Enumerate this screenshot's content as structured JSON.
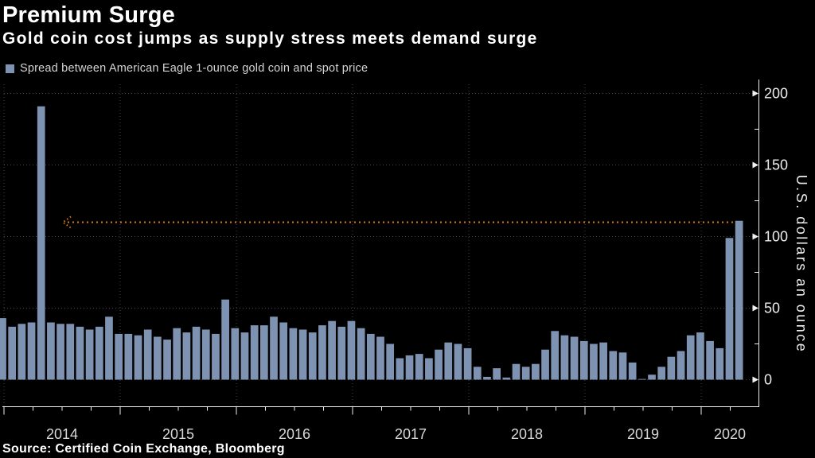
{
  "header": {
    "title": "Premium Surge",
    "subtitle": "Gold coin cost jumps as supply stress meets demand surge"
  },
  "legend": {
    "label": "Spread between American Eagle 1-ounce gold coin and spot price",
    "swatch_color": "#7e92b1"
  },
  "source": "Source: Certified Coin Exchange, Bloomberg",
  "chart_data": {
    "type": "bar",
    "title": "Premium Surge",
    "subtitle": "Gold coin cost jumps as supply stress meets demand surge",
    "series_name": "Spread between American Eagle 1-ounce gold coin and spot price",
    "xlabel": "",
    "ylabel": "U.S. dollars an ounce",
    "ylim": [
      0,
      210
    ],
    "y_ticks": [
      0,
      50,
      100,
      150,
      200
    ],
    "y_minor_ticks": [
      25,
      75,
      125,
      175
    ],
    "grid": "dotted",
    "legend_position": "top-left",
    "x_year_labels": [
      "2014",
      "2015",
      "2016",
      "2017",
      "2018",
      "2019",
      "2020"
    ],
    "months": [
      "2013-12",
      "2014-01",
      "2014-02",
      "2014-03",
      "2014-04",
      "2014-05",
      "2014-06",
      "2014-07",
      "2014-08",
      "2014-09",
      "2014-10",
      "2014-11",
      "2014-12",
      "2015-01",
      "2015-02",
      "2015-03",
      "2015-04",
      "2015-05",
      "2015-06",
      "2015-07",
      "2015-08",
      "2015-09",
      "2015-10",
      "2015-11",
      "2015-12",
      "2016-01",
      "2016-02",
      "2016-03",
      "2016-04",
      "2016-05",
      "2016-06",
      "2016-07",
      "2016-08",
      "2016-09",
      "2016-10",
      "2016-11",
      "2016-12",
      "2017-01",
      "2017-02",
      "2017-03",
      "2017-04",
      "2017-05",
      "2017-06",
      "2017-07",
      "2017-08",
      "2017-09",
      "2017-10",
      "2017-11",
      "2017-12",
      "2018-01",
      "2018-02",
      "2018-03",
      "2018-04",
      "2018-05",
      "2018-06",
      "2018-07",
      "2018-08",
      "2018-09",
      "2018-10",
      "2018-11",
      "2018-12",
      "2019-01",
      "2019-02",
      "2019-03",
      "2019-04",
      "2019-05",
      "2019-06",
      "2019-07",
      "2019-08",
      "2019-09",
      "2019-10",
      "2019-11",
      "2019-12",
      "2020-01",
      "2020-02",
      "2020-03",
      "2020-04"
    ],
    "values": [
      43,
      37,
      39,
      40,
      191,
      40,
      39,
      39,
      37,
      35,
      37,
      44,
      32,
      32,
      31,
      35,
      30,
      28,
      36,
      33,
      37,
      35,
      32,
      56,
      36,
      33,
      38,
      38,
      44,
      40,
      36,
      35,
      33,
      38,
      41,
      37,
      41,
      36,
      32,
      30,
      25,
      15,
      17,
      18,
      15,
      21,
      26,
      25,
      22,
      9,
      2,
      8,
      1.5,
      11,
      9,
      11,
      21,
      34,
      31,
      30,
      27,
      25,
      26,
      20,
      19,
      12,
      0.5,
      3.5,
      9,
      16,
      20,
      31,
      33,
      27,
      22,
      99,
      111
    ],
    "annotation": {
      "type": "dotted-line-with-left-arrow",
      "value": 110,
      "color": "#d97a12",
      "meaning": "current premium level traced back toward the 2014 spike"
    },
    "colors": {
      "bar": "#7e92b1",
      "background": "#000000",
      "gridline": "#454545",
      "axis": "#f0f0f0",
      "annotation": "#d97a12"
    }
  }
}
